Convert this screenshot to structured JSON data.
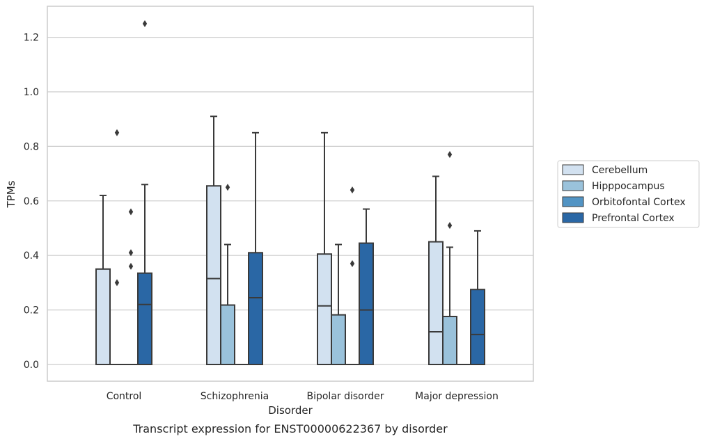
{
  "chart_data": {
    "type": "box",
    "title": "",
    "caption": "Transcript expression for ENST00000622367 by disorder",
    "xlabel": "Disorder",
    "ylabel": "TPMs",
    "ylim": [
      -0.06,
      1.32
    ],
    "yticks": [
      "0.0",
      "0.2",
      "0.4",
      "0.6",
      "0.8",
      "1.0",
      "1.2"
    ],
    "categories": [
      "Control",
      "Schizophrenia",
      "Bipolar disorder",
      "Major depression"
    ],
    "grid": "horizontal",
    "legend_position": "right",
    "series": [
      {
        "name": "Cerebellum",
        "color": "#d2e1f0",
        "boxes": [
          {
            "q1": 0.0,
            "median": 0.0,
            "q3": 0.35,
            "whisker_low": 0.0,
            "whisker_high": 0.62,
            "outliers": []
          },
          {
            "q1": 0.0,
            "median": 0.315,
            "q3": 0.655,
            "whisker_low": 0.0,
            "whisker_high": 0.91,
            "outliers": []
          },
          {
            "q1": 0.0,
            "median": 0.215,
            "q3": 0.405,
            "whisker_low": 0.0,
            "whisker_high": 0.85,
            "outliers": []
          },
          {
            "q1": 0.0,
            "median": 0.12,
            "q3": 0.45,
            "whisker_low": 0.0,
            "whisker_high": 0.69,
            "outliers": []
          }
        ]
      },
      {
        "name": "Hipppocampus",
        "color": "#9ac2db",
        "boxes": [
          {
            "q1": 0.0,
            "median": 0.0,
            "q3": 0.0,
            "whisker_low": 0.0,
            "whisker_high": 0.0,
            "outliers": [
              0.3,
              0.85
            ]
          },
          {
            "q1": 0.0,
            "median": 0.0,
            "q3": 0.218,
            "whisker_low": 0.0,
            "whisker_high": 0.44,
            "outliers": [
              0.65
            ]
          },
          {
            "q1": 0.0,
            "median": 0.0,
            "q3": 0.182,
            "whisker_low": 0.0,
            "whisker_high": 0.44,
            "outliers": []
          },
          {
            "q1": 0.0,
            "median": 0.0,
            "q3": 0.176,
            "whisker_low": 0.0,
            "whisker_high": 0.43,
            "outliers": [
              0.51,
              0.77
            ]
          }
        ]
      },
      {
        "name": "Orbitofontal Cortex",
        "color": "#5294c4",
        "boxes": [
          {
            "q1": 0.0,
            "median": 0.0,
            "q3": 0.0,
            "whisker_low": 0.0,
            "whisker_high": 0.0,
            "outliers": [
              0.36,
              0.41,
              0.56
            ]
          },
          {
            "q1": 0.0,
            "median": 0.0,
            "q3": 0.0,
            "whisker_low": 0.0,
            "whisker_high": 0.0,
            "outliers": []
          },
          {
            "q1": 0.0,
            "median": 0.0,
            "q3": 0.0,
            "whisker_low": 0.0,
            "whisker_high": 0.0,
            "outliers": [
              0.37,
              0.64
            ]
          },
          {
            "q1": 0.0,
            "median": 0.0,
            "q3": 0.0,
            "whisker_low": 0.0,
            "whisker_high": 0.0,
            "outliers": []
          }
        ]
      },
      {
        "name": "Prefrontal Cortex",
        "color": "#2a67a5",
        "boxes": [
          {
            "q1": 0.0,
            "median": 0.22,
            "q3": 0.335,
            "whisker_low": 0.0,
            "whisker_high": 0.66,
            "outliers": [
              1.25
            ]
          },
          {
            "q1": 0.0,
            "median": 0.245,
            "q3": 0.41,
            "whisker_low": 0.0,
            "whisker_high": 0.85,
            "outliers": []
          },
          {
            "q1": 0.0,
            "median": 0.2,
            "q3": 0.445,
            "whisker_low": 0.0,
            "whisker_high": 0.57,
            "outliers": []
          },
          {
            "q1": 0.0,
            "median": 0.11,
            "q3": 0.275,
            "whisker_low": 0.0,
            "whisker_high": 0.49,
            "outliers": []
          }
        ]
      }
    ]
  }
}
